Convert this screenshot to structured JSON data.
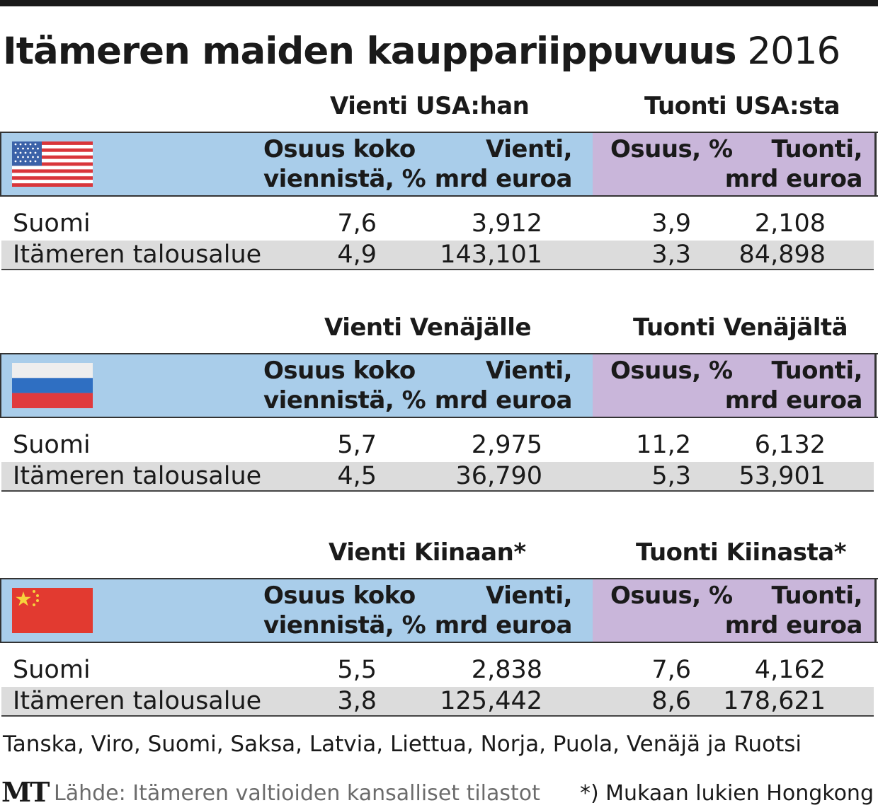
{
  "title": {
    "bold": "Itämeren maiden kauppariippuvuus",
    "year": "2016"
  },
  "column_headers": {
    "share_export": [
      "Osuus koko",
      "viennistä, %"
    ],
    "export_value": [
      "Vienti,",
      "mrd euroa"
    ],
    "share_import": [
      "Osuus, %"
    ],
    "import_value": [
      "Tuonti,",
      "mrd euroa"
    ]
  },
  "sections": [
    {
      "flag": "usa-flag-icon",
      "export_title": "Vienti USA:han",
      "import_title": "Tuonti USA:sta",
      "rows": [
        {
          "label": "Suomi",
          "export_share": "7,6",
          "export_value": "3,912",
          "import_share": "3,9",
          "import_value": "2,108"
        },
        {
          "label": "Itämeren talousalue",
          "export_share": "4,9",
          "export_value": "143,101",
          "import_share": "3,3",
          "import_value": "84,898"
        }
      ]
    },
    {
      "flag": "russia-flag-icon",
      "export_title": "Vienti Venäjälle",
      "import_title": "Tuonti Venäjältä",
      "rows": [
        {
          "label": "Suomi",
          "export_share": "5,7",
          "export_value": "2,975",
          "import_share": "11,2",
          "import_value": "6,132"
        },
        {
          "label": "Itämeren talousalue",
          "export_share": "4,5",
          "export_value": "36,790",
          "import_share": "5,3",
          "import_value": "53,901"
        }
      ]
    },
    {
      "flag": "china-flag-icon",
      "export_title": "Vienti Kiinaan*",
      "import_title": "Tuonti Kiinasta*",
      "rows": [
        {
          "label": "Suomi",
          "export_share": "5,5",
          "export_value": "2,838",
          "import_share": "7,6",
          "import_value": "4,162"
        },
        {
          "label": "Itämeren talousalue",
          "export_share": "3,8",
          "export_value": "125,442",
          "import_share": "8,6",
          "import_value": "178,621"
        }
      ]
    }
  ],
  "footer": {
    "members": "Tanska, Viro, Suomi, Saksa, Latvia, Liettua, Norja, Puola, Venäjä ja Ruotsi",
    "logo": "MT",
    "source": "Lähde: Itämeren valtioiden kansalliset tilastot",
    "note": "*) Mukaan lukien Hongkong"
  },
  "colors": {
    "export_header": "#a9cdea",
    "import_header": "#c9b6da",
    "row_shade": "#dcdcdc"
  },
  "chart_data": {
    "type": "table",
    "title": "Itämeren maiden kauppariippuvuus 2016",
    "columns": [
      "Osuus koko viennistä, %",
      "Vienti, mrd euroa",
      "Osuus, %",
      "Tuonti, mrd euroa"
    ],
    "tables": [
      {
        "partner": "USA",
        "rows": [
          [
            "Suomi",
            7.6,
            3.912,
            3.9,
            2.108
          ],
          [
            "Itämeren talousalue",
            4.9,
            143.101,
            3.3,
            84.898
          ]
        ]
      },
      {
        "partner": "Venäjä",
        "rows": [
          [
            "Suomi",
            5.7,
            2.975,
            11.2,
            6.132
          ],
          [
            "Itämeren talousalue",
            4.5,
            36.79,
            5.3,
            53.901
          ]
        ]
      },
      {
        "partner": "Kiina",
        "rows": [
          [
            "Suomi",
            5.5,
            2.838,
            7.6,
            4.162
          ],
          [
            "Itämeren talousalue",
            3.8,
            125.442,
            8.6,
            178.621
          ]
        ]
      }
    ]
  }
}
